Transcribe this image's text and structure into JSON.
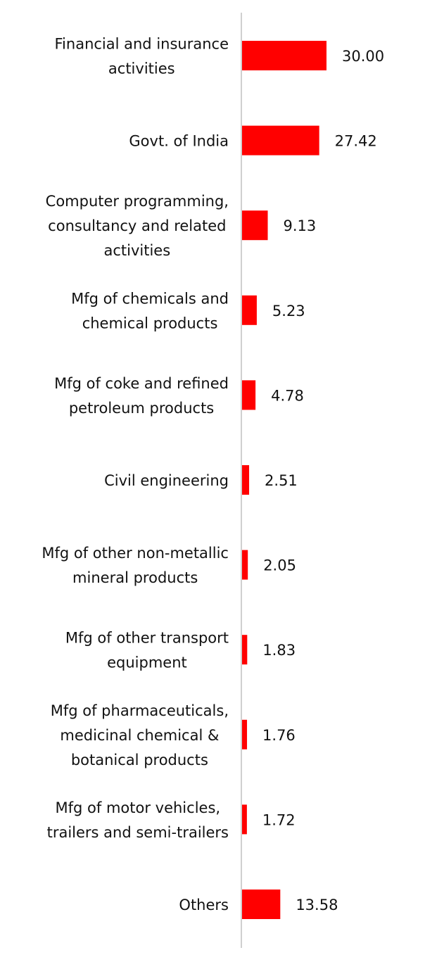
{
  "chart_data": {
    "type": "bar",
    "orientation": "horizontal",
    "categories": [
      [
        "Financial and insurance",
        "activities"
      ],
      [
        "Govt. of India"
      ],
      [
        "Computer programming,",
        "consultancy and related",
        "activities"
      ],
      [
        "Mfg of chemicals and",
        "chemical products"
      ],
      [
        "Mfg of coke and refined",
        "petroleum products"
      ],
      [
        "Civil engineering"
      ],
      [
        "Mfg of other non-metallic",
        "mineral products"
      ],
      [
        "Mfg of other transport",
        "equipment"
      ],
      [
        "Mfg of pharmaceuticals,",
        "medicinal chemical &",
        "botanical products"
      ],
      [
        "Mfg of motor vehicles,",
        "trailers and semi-trailers"
      ],
      [
        "Others"
      ]
    ],
    "values": [
      30.0,
      27.42,
      9.13,
      5.23,
      4.78,
      2.51,
      2.05,
      1.83,
      1.76,
      1.72,
      13.58
    ],
    "value_labels": [
      "30.00",
      "27.42",
      "9.13",
      "5.23",
      "4.78",
      "2.51",
      "2.05",
      "1.83",
      "1.76",
      "1.72",
      "13.58"
    ],
    "title": "",
    "xlabel": "",
    "ylabel": "",
    "xlim": [
      0,
      30
    ],
    "grid": false,
    "legend": "none",
    "bar_color": "#ff0000",
    "axis_color": "#d0d0d0"
  }
}
